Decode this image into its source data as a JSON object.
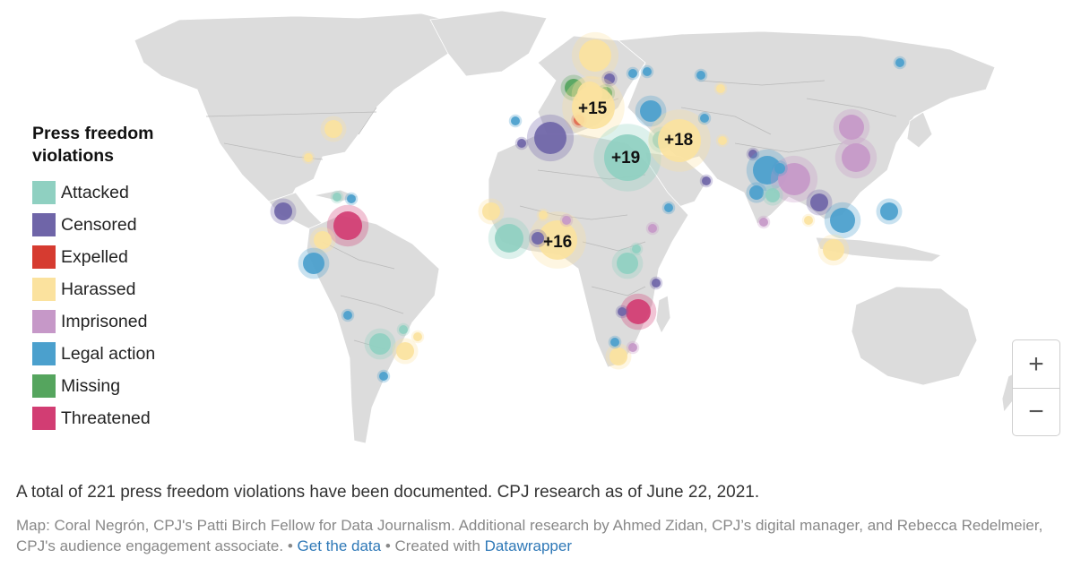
{
  "legend": {
    "title_line1": "Press freedom",
    "title_line2": "violations",
    "items": [
      {
        "label": "Attacked",
        "color": "#8fd0c1"
      },
      {
        "label": "Censored",
        "color": "#6f65a8"
      },
      {
        "label": "Expelled",
        "color": "#d63b30"
      },
      {
        "label": "Harassed",
        "color": "#fbe29e"
      },
      {
        "label": "Imprisoned",
        "color": "#c698c8"
      },
      {
        "label": "Legal action",
        "color": "#4ba0cd"
      },
      {
        "label": "Missing",
        "color": "#55a55e"
      },
      {
        "label": "Threatened",
        "color": "#d23d73"
      }
    ]
  },
  "clusters": [
    "+15",
    "+19",
    "+18",
    "+16"
  ],
  "zoom": {
    "in_label": "+",
    "out_label": "−"
  },
  "caption": {
    "summary": "A total of 221 press freedom violations have been documented. CPJ research as of June 22, 2021.",
    "credit_text": "Map: Coral Negrón, CPJ's Patti Birch Fellow for Data Journalism. Additional research by Ahmed Zidan, CPJ’s digital manager, and Rebecca Redelmeier, CPJ's audience engagement associate.",
    "separator1": " • ",
    "get_data_link": "Get the data",
    "separator2": " • Created with ",
    "datawrapper_link": "Datawrapper"
  }
}
